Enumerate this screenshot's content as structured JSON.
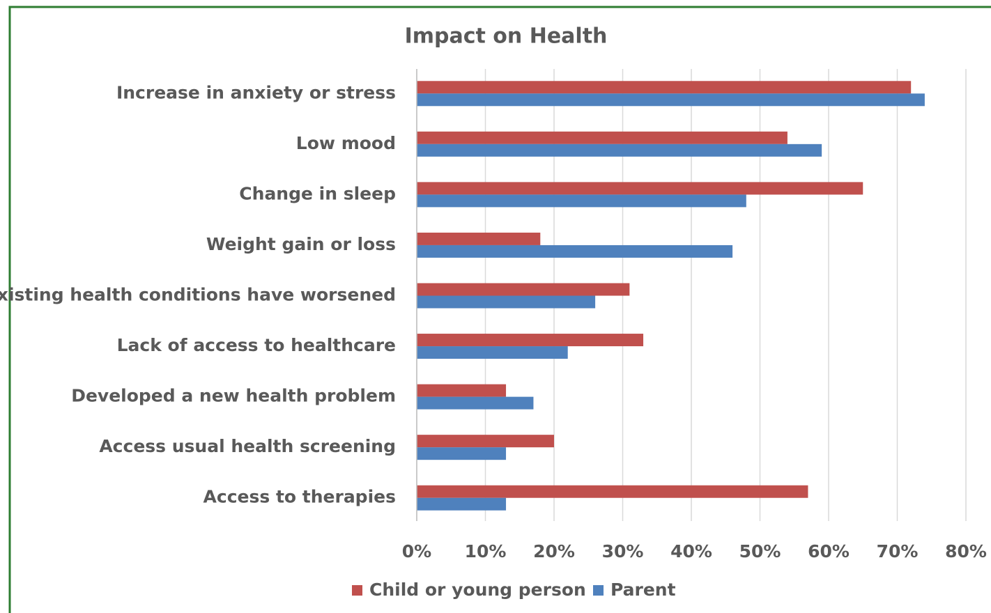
{
  "chart_data": {
    "type": "bar",
    "orientation": "horizontal",
    "title": "Impact on Health",
    "categories": [
      "Increase in anxiety or stress",
      "Low mood",
      "Change in sleep",
      "Weight gain or loss",
      "Existing health conditions have worsened",
      "Lack of access to healthcare",
      "Developed a new health problem",
      "Access usual health screening",
      "Access to therapies"
    ],
    "series": [
      {
        "name": "Child or young person",
        "color": "#c0504d",
        "values": [
          72,
          54,
          65,
          18,
          31,
          33,
          13,
          20,
          57
        ]
      },
      {
        "name": "Parent",
        "color": "#4f81bd",
        "values": [
          74,
          59,
          48,
          46,
          26,
          22,
          17,
          13,
          13
        ]
      }
    ],
    "xlim": [
      0,
      80
    ],
    "xticks": [
      {
        "value": 0,
        "label": "0%"
      },
      {
        "value": 10,
        "label": "10%"
      },
      {
        "value": 20,
        "label": "20%"
      },
      {
        "value": 30,
        "label": "30%"
      },
      {
        "value": 40,
        "label": "40%"
      },
      {
        "value": 50,
        "label": "50%"
      },
      {
        "value": 60,
        "label": "60%"
      },
      {
        "value": 70,
        "label": "70%"
      },
      {
        "value": 80,
        "label": "80%"
      }
    ],
    "grid": true,
    "legend": "bottom"
  }
}
